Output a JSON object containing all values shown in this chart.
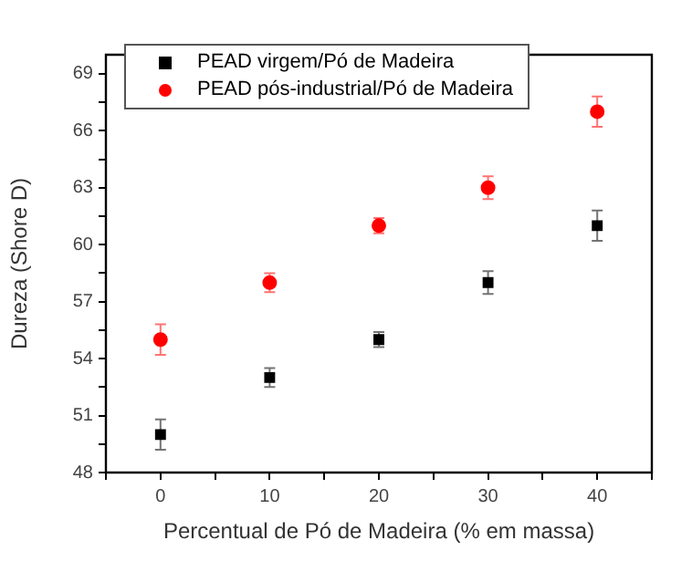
{
  "chart_data": {
    "type": "scatter",
    "xlabel": "Percentual de Pó de Madeira (% em massa)",
    "ylabel": "Dureza (Shore D)",
    "xlim": [
      -5,
      45
    ],
    "xticks": [
      {
        "value": -5,
        "label": null
      },
      0,
      {
        "value": 5,
        "label": null
      },
      10,
      {
        "value": 15,
        "label": null
      },
      20,
      {
        "value": 25,
        "label": null
      },
      30,
      {
        "value": 35,
        "label": null
      },
      40,
      {
        "value": 45,
        "label": null
      }
    ],
    "ylim": [
      48,
      70
    ],
    "yticks": [
      48,
      {
        "value": 49.5,
        "label": null
      },
      51,
      {
        "value": 52.5,
        "label": null
      },
      54,
      {
        "value": 55.5,
        "label": null
      },
      57,
      {
        "value": 58.5,
        "label": null
      },
      60,
      {
        "value": 61.5,
        "label": null
      },
      63,
      {
        "value": 64.5,
        "label": null
      },
      66,
      {
        "value": 67.5,
        "label": null
      },
      69
    ],
    "x": [
      0,
      10,
      20,
      30,
      40
    ],
    "series": [
      {
        "name": "PEAD virgem/Pó de Madeira",
        "color": "#000000",
        "marker": "square",
        "values": [
          50,
          53,
          55,
          58,
          61
        ],
        "errors": [
          0.8,
          0.5,
          0.4,
          0.6,
          0.8
        ]
      },
      {
        "name": "PEAD pós-industrial/Pó de Madeira",
        "color": "#ff0000",
        "marker": "circle",
        "values": [
          55,
          58,
          61,
          63,
          67
        ],
        "errors": [
          0.8,
          0.5,
          0.4,
          0.6,
          0.8
        ]
      }
    ],
    "grid": false,
    "legend": "top left"
  }
}
